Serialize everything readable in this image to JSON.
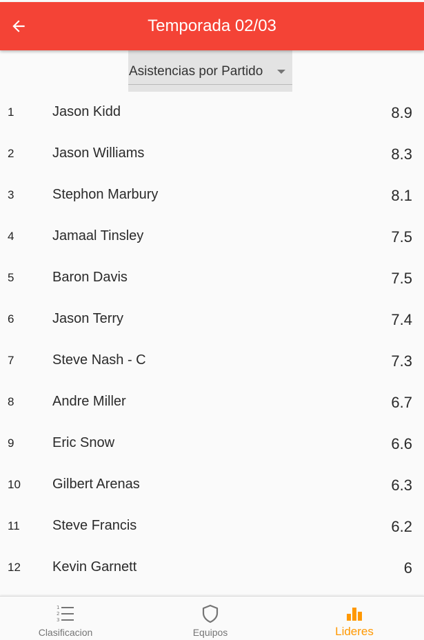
{
  "appbar": {
    "title": "Temporada 02/03",
    "background": "#f44336"
  },
  "back_icon": "arrow-left-icon",
  "stat_dropdown": {
    "selected": "Asistencias por Partido"
  },
  "leaders": [
    {
      "rank": "1",
      "name": "Jason Kidd",
      "value": "8.9"
    },
    {
      "rank": "2",
      "name": "Jason Williams",
      "value": "8.3"
    },
    {
      "rank": "3",
      "name": "Stephon Marbury",
      "value": "8.1"
    },
    {
      "rank": "4",
      "name": "Jamaal Tinsley",
      "value": "7.5"
    },
    {
      "rank": "5",
      "name": "Baron Davis",
      "value": "7.5"
    },
    {
      "rank": "6",
      "name": "Jason Terry",
      "value": "7.4"
    },
    {
      "rank": "7",
      "name": "Steve Nash - C",
      "value": "7.3"
    },
    {
      "rank": "8",
      "name": "Andre Miller",
      "value": "6.7"
    },
    {
      "rank": "9",
      "name": "Eric Snow",
      "value": "6.6"
    },
    {
      "rank": "10",
      "name": "Gilbert Arenas",
      "value": "6.3"
    },
    {
      "rank": "11",
      "name": "Steve Francis",
      "value": "6.2"
    },
    {
      "rank": "12",
      "name": "Kevin Garnett",
      "value": "6"
    }
  ],
  "bottom_nav": {
    "items": [
      {
        "label": "Clasificacion",
        "icon": "numbered-list-icon",
        "active": false
      },
      {
        "label": "Equipos",
        "icon": "shield-icon",
        "active": false
      },
      {
        "label": "Lideres",
        "icon": "bar-chart-icon",
        "active": true
      }
    ],
    "active_color": "#ff9800",
    "inactive_color": "#757575"
  }
}
